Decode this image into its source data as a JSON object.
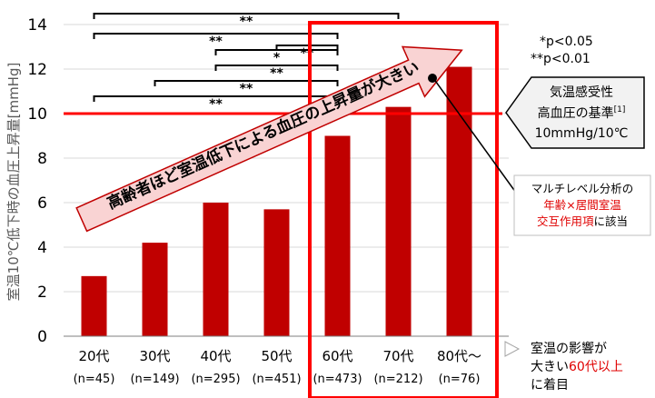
{
  "chart_data": {
    "type": "bar",
    "ylabel": "室温10℃低下時の血圧上昇量[mmHg]",
    "ylim": [
      0,
      14
    ],
    "yticks": [
      0,
      2,
      4,
      6,
      8,
      10,
      12,
      14
    ],
    "categories": [
      "20代",
      "30代",
      "40代",
      "50代",
      "60代",
      "70代",
      "80代～"
    ],
    "sample_sizes": [
      "(n=45)",
      "(n=149)",
      "(n=295)",
      "(n=451)",
      "(n=473)",
      "(n=212)",
      "(n=76)"
    ],
    "values": [
      2.7,
      4.2,
      6.0,
      5.7,
      9.0,
      10.3,
      12.1
    ],
    "bar_color": "#c00000",
    "reference_line": {
      "value": 10,
      "color": "#ff0000"
    },
    "significance": [
      {
        "from": 0,
        "to": 5,
        "label": "**"
      },
      {
        "from": 0,
        "to": 4,
        "label": "**"
      },
      {
        "from": 3,
        "to": 4,
        "label": "**"
      },
      {
        "from": 2,
        "to": 4,
        "label": "*"
      },
      {
        "from": 2,
        "to": 4,
        "label": "**"
      },
      {
        "from": 1,
        "to": 4,
        "label": "**"
      },
      {
        "from": 0,
        "to": 4,
        "label": "**"
      }
    ],
    "legend": {
      "p1": "*p<0.05",
      "p2": "**p<0.01"
    },
    "arrow_label": "高齢者ほど室温低下による血圧の上昇量が大きい",
    "threshold_box": {
      "line1": "気温感受性",
      "line2": "高血圧の基準",
      "sup": "[1]",
      "line3": "10mmHg/10℃"
    },
    "analysis_note": {
      "line1": "マルチレベル分析の",
      "line2_red": "年齢×居間室温",
      "line3_red": "交互作用項",
      "line3_black": "に該当"
    },
    "highlight_note": {
      "line1": "室温の影響が",
      "line2_black": "大きい",
      "line2_red": "60代以上",
      "line3": "に着目"
    }
  }
}
